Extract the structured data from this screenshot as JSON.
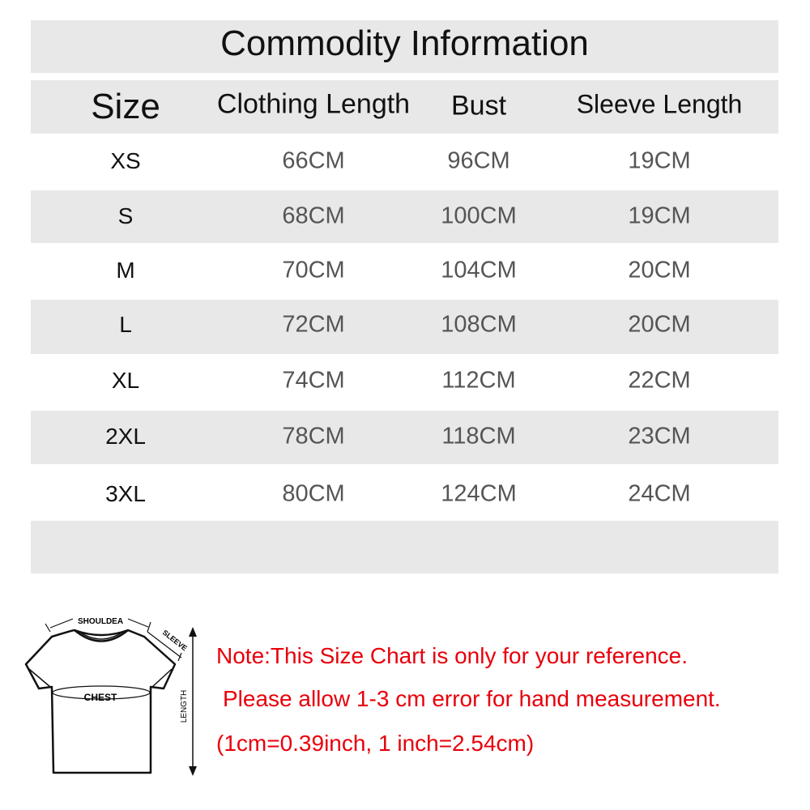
{
  "title": "Commodity Information",
  "table": {
    "headers": [
      "Size",
      "Clothing Length",
      "Bust",
      "Sleeve Length"
    ],
    "rows": [
      [
        "XS",
        "66CM",
        "96CM",
        "19CM"
      ],
      [
        "S",
        "68CM",
        "100CM",
        "19CM"
      ],
      [
        "M",
        "70CM",
        "104CM",
        "20CM"
      ],
      [
        "L",
        "72CM",
        "108CM",
        "20CM"
      ],
      [
        "XL",
        "74CM",
        "112CM",
        "22CM"
      ],
      [
        "2XL",
        "78CM",
        "118CM",
        "23CM"
      ],
      [
        "3XL",
        "80CM",
        "124CM",
        "24CM"
      ]
    ]
  },
  "diagram": {
    "shoulder": "SHOULDEA",
    "sleeve": "SLEEVE",
    "chest": "CHEST",
    "length": "LENGTH"
  },
  "notes": [
    "Note:This Size Chart is only for your reference.",
    "Please allow 1-3 cm error for hand measurement.",
    "(1cm=0.39inch, 1 inch=2.54cm)"
  ],
  "colors": {
    "band": "#e8e8e8",
    "note": "#e8000b",
    "value": "#555555"
  }
}
